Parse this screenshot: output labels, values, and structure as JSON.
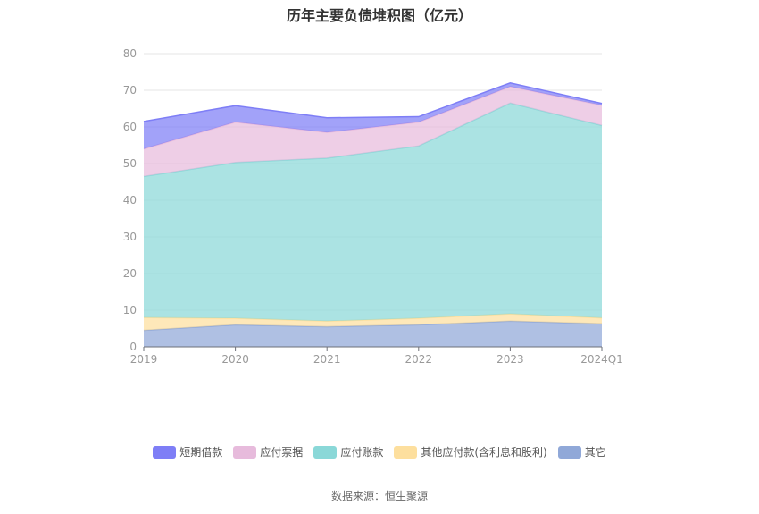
{
  "chart_data": {
    "type": "area",
    "stacked": true,
    "title": "历年主要负债堆积图（亿元）",
    "categories": [
      "2019",
      "2020",
      "2021",
      "2022",
      "2023",
      "2024Q1"
    ],
    "ylim": [
      0,
      80
    ],
    "yticks": [
      0,
      10,
      20,
      30,
      40,
      50,
      60,
      70,
      80
    ],
    "grid": true,
    "legend_position": "bottom",
    "series": [
      {
        "name": "其它",
        "color": "#90a8d8",
        "values": [
          4.5,
          6.0,
          5.5,
          6.0,
          7.0,
          6.3
        ]
      },
      {
        "name": "其他应付款(含利息和股利)",
        "color": "#fddf9e",
        "values": [
          3.5,
          1.8,
          1.5,
          1.8,
          2.0,
          1.6
        ]
      },
      {
        "name": "应付账款",
        "color": "#8ad8d8",
        "values": [
          38.5,
          42.5,
          44.5,
          47.0,
          57.5,
          52.5
        ]
      },
      {
        "name": "应付票据",
        "color": "#e7bbdc",
        "values": [
          7.5,
          11.0,
          7.0,
          6.5,
          4.5,
          5.5
        ]
      },
      {
        "name": "短期借款",
        "color": "#7e7ef6",
        "values": [
          7.5,
          4.5,
          4.0,
          1.5,
          1.0,
          0.5
        ]
      }
    ]
  },
  "source_text": "数据来源：恒生聚源"
}
